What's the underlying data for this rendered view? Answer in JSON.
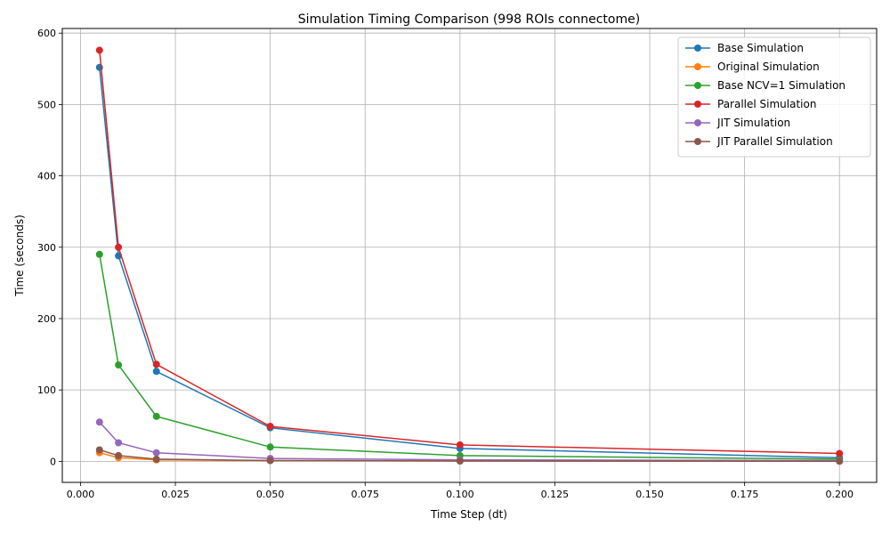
{
  "chart_data": {
    "type": "line",
    "title": "Simulation Timing Comparison (998 ROIs connectome)",
    "xlabel": "Time Step (dt)",
    "ylabel": "Time (seconds)",
    "xlim": [
      -0.0048,
      0.2098
    ],
    "ylim": [
      -29.5,
      606.5
    ],
    "x_ticks": [
      0.0,
      0.025,
      0.05,
      0.075,
      0.1,
      0.125,
      0.15,
      0.175,
      0.2
    ],
    "x_tick_labels": [
      "0.000",
      "0.025",
      "0.050",
      "0.075",
      "0.100",
      "0.125",
      "0.150",
      "0.175",
      "0.200"
    ],
    "y_ticks": [
      0,
      100,
      200,
      300,
      400,
      500,
      600
    ],
    "y_tick_labels": [
      "0",
      "100",
      "200",
      "300",
      "400",
      "500",
      "600"
    ],
    "grid": true,
    "legend_position": "top-right",
    "x": [
      0.005,
      0.01,
      0.02,
      0.05,
      0.1,
      0.2
    ],
    "series": [
      {
        "name": "Base Simulation",
        "color": "#1f77b4",
        "values": [
          552,
          288,
          126,
          47,
          18,
          5
        ]
      },
      {
        "name": "Original Simulation",
        "color": "#ff7f0e",
        "values": [
          12,
          5,
          2,
          1,
          0.5,
          0.2
        ]
      },
      {
        "name": "Base NCV=1 Simulation",
        "color": "#2ca02c",
        "values": [
          290,
          135,
          63,
          20,
          8,
          3
        ]
      },
      {
        "name": "Parallel Simulation",
        "color": "#d62728",
        "values": [
          576,
          300,
          136,
          49,
          23,
          11
        ]
      },
      {
        "name": "JIT Simulation",
        "color": "#9467bd",
        "values": [
          55,
          26,
          12,
          4,
          2,
          1
        ]
      },
      {
        "name": "JIT Parallel Simulation",
        "color": "#8c564b",
        "values": [
          16,
          8,
          3,
          1,
          0.4,
          0.1
        ]
      }
    ]
  }
}
